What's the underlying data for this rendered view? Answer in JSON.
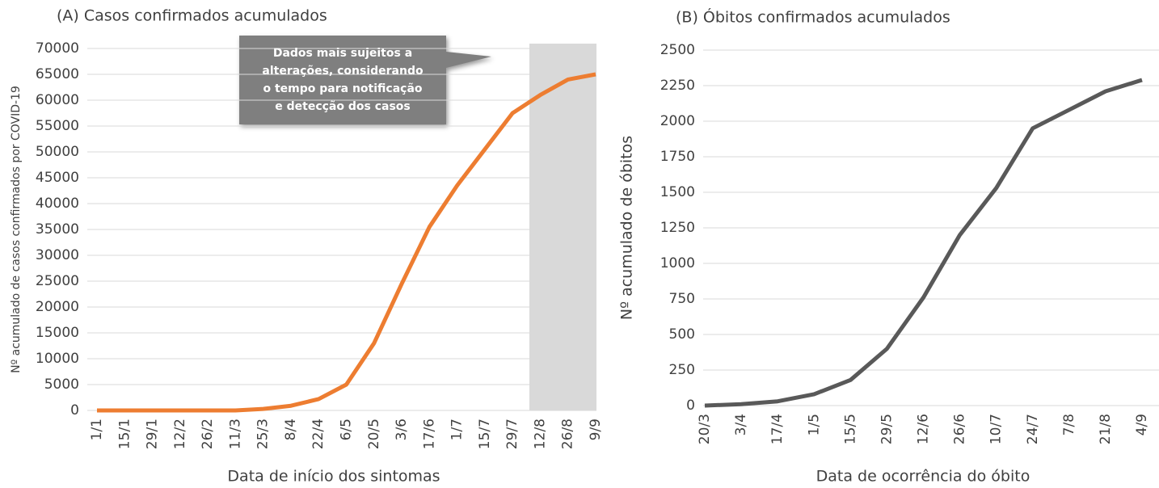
{
  "chart_data": [
    {
      "type": "line",
      "title": "(A)  Casos confirmados acumulados",
      "x_label": "Data de início dos sintomas",
      "y_label": "Nº acumulado de casos confirmados por COVID-19",
      "annotation": [
        "Dados mais sujeitos a",
        "alterações, considerando",
        "o tempo para notificação",
        "e detecção dos casos"
      ],
      "categories": [
        "1/1",
        "15/1",
        "29/1",
        "12/2",
        "26/2",
        "11/3",
        "25/3",
        "8/4",
        "22/4",
        "6/5",
        "20/5",
        "3/6",
        "17/6",
        "1/7",
        "15/7",
        "29/7",
        "12/8",
        "26/8",
        "9/9"
      ],
      "series": [
        {
          "color": "#ed7d31",
          "values": [
            0,
            0,
            0,
            0,
            0,
            0,
            300,
            900,
            2200,
            5000,
            13000,
            24500,
            35500,
            43500,
            50500,
            57500,
            61000,
            64000,
            65000
          ]
        }
      ],
      "ylim": [
        0,
        70000
      ],
      "yticks": [
        0,
        5000,
        10000,
        15000,
        20000,
        25000,
        30000,
        35000,
        40000,
        45000,
        50000,
        55000,
        60000,
        65000,
        70000
      ],
      "grid": true
    },
    {
      "type": "line",
      "title": "(B) Óbitos confirmados acumulados",
      "x_label": "Data de ocorrência do óbito",
      "y_label": "Nº acumulado de óbitos",
      "categories": [
        "20/3",
        "3/4",
        "17/4",
        "1/5",
        "15/5",
        "29/5",
        "12/6",
        "26/6",
        "10/7",
        "24/7",
        "7/8",
        "21/8",
        "4/9"
      ],
      "series": [
        {
          "color": "#595959",
          "values": [
            0,
            10,
            30,
            80,
            180,
            400,
            760,
            1200,
            1530,
            1950,
            2080,
            2210,
            2290
          ]
        }
      ],
      "ylim": [
        0,
        2500
      ],
      "yticks": [
        0,
        250,
        500,
        750,
        1000,
        1250,
        1500,
        1750,
        2000,
        2250,
        2500
      ],
      "grid": true
    }
  ]
}
